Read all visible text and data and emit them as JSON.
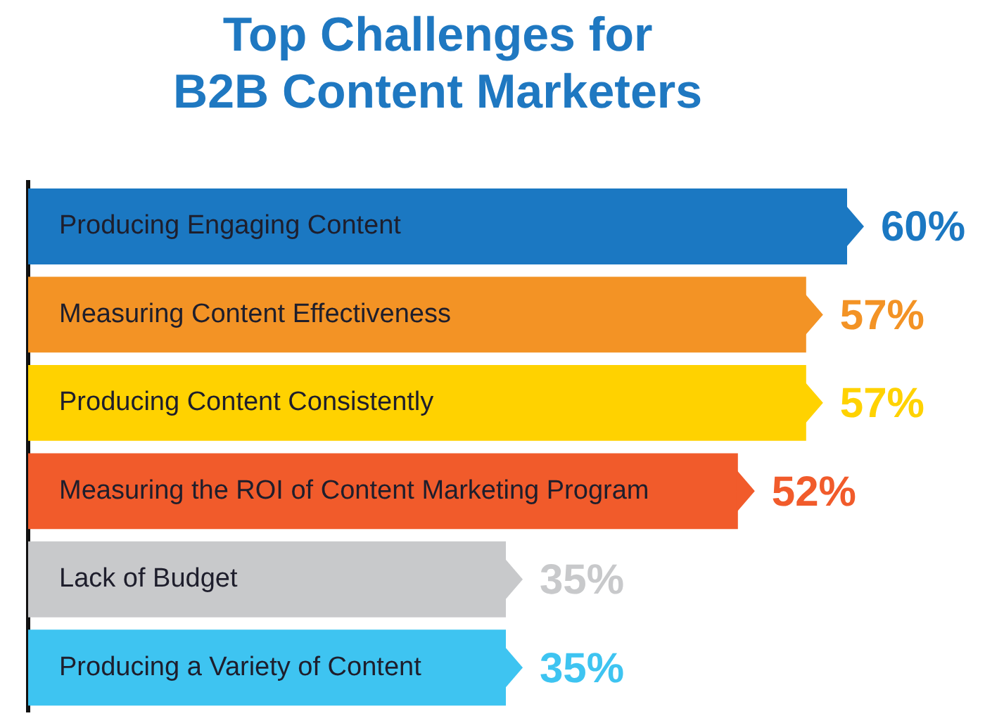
{
  "chart_data": {
    "type": "bar",
    "orientation": "horizontal",
    "title": [
      "Top Challenges for",
      "B2B Content Marketers"
    ],
    "categories": [
      "Producing Engaging Content",
      "Measuring Content Effectiveness",
      "Producing Content Consistently",
      "Measuring the ROI of Content Marketing Program",
      "Lack of Budget",
      "Producing a Variety of Content"
    ],
    "values": [
      60,
      57,
      57,
      52,
      35,
      35
    ],
    "colors": [
      "#1b78c2",
      "#f39325",
      "#ffd200",
      "#f15b2b",
      "#c8c9cb",
      "#3ec4f1"
    ],
    "value_labels": [
      "60%",
      "57%",
      "57%",
      "52%",
      "35%",
      "35%"
    ],
    "tick_labels": "y",
    "grid": false,
    "legend": false
  }
}
